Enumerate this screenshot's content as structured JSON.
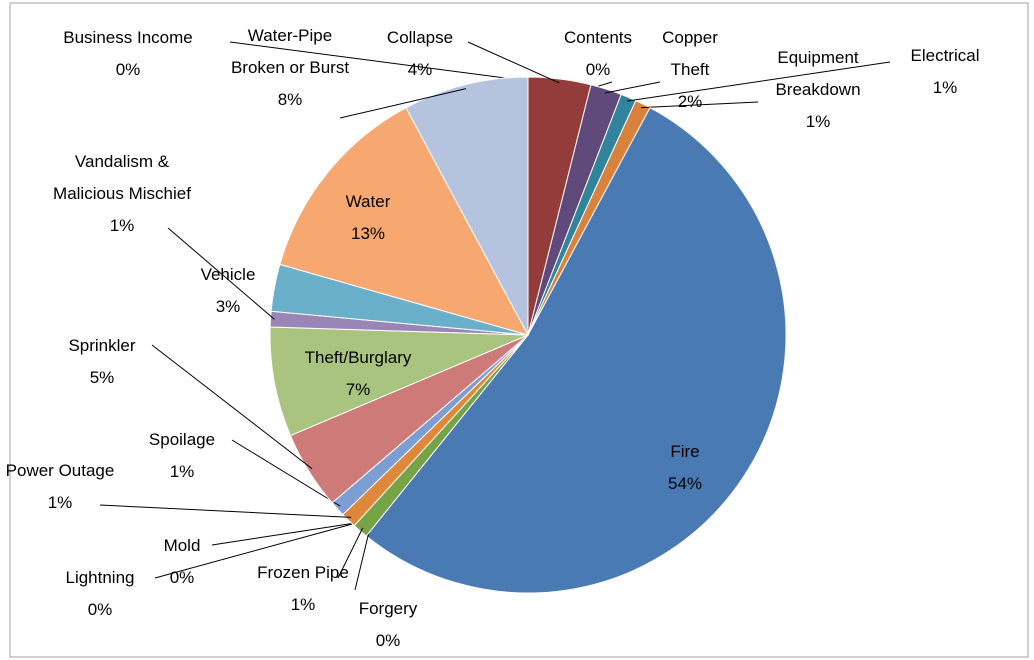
{
  "chart_data": {
    "type": "pie",
    "categories": [
      "Business Income",
      "Collapse",
      "Contents",
      "Copper Theft",
      "Electrical",
      "Equipment Breakdown",
      "Fire",
      "Forgery",
      "Frozen Pipe",
      "Lightning",
      "Mold",
      "Power Outage",
      "Spoilage",
      "Sprinkler",
      "Theft/Burglary",
      "Vandalism & Malicious Mischief",
      "Vehicle",
      "Water",
      "Water-Pipe Broken or Burst"
    ],
    "values": [
      0,
      4,
      0,
      2,
      1,
      1,
      54,
      0,
      1,
      0,
      0,
      1,
      1,
      5,
      7,
      1,
      3,
      13,
      8
    ],
    "value_labels": [
      "0%",
      "4%",
      "0%",
      "2%",
      "1%",
      "1%",
      "54%",
      "0%",
      "1%",
      "0%",
      "0%",
      "1%",
      "1%",
      "5%",
      "7%",
      "1%",
      "3%",
      "13%",
      "8%"
    ],
    "colors": [
      "#4f81bd",
      "#943c3a",
      "#77933c",
      "#604a7b",
      "#31849b",
      "#d8823c",
      "#4a7ab4",
      "#9bbb59",
      "#77a347",
      "#5a4a8a",
      "#3a9ab5",
      "#e0883a",
      "#7d9ed3",
      "#cd7a78",
      "#a9c47f",
      "#9a86b6",
      "#6ab0ca",
      "#f7a871",
      "#b6c3de"
    ]
  }
}
